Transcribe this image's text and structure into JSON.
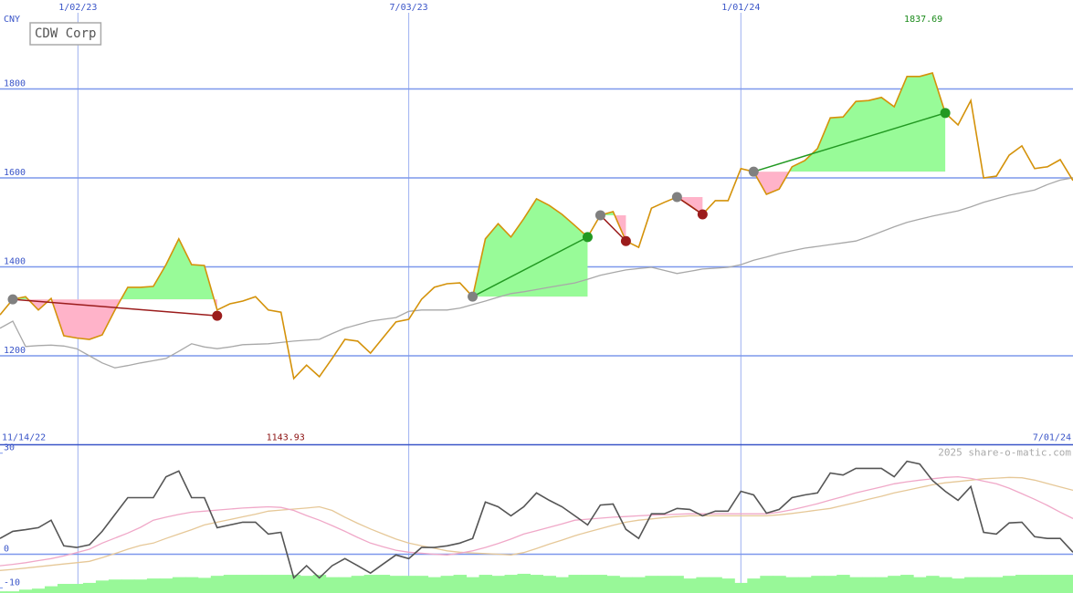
{
  "chart_data": [
    {
      "type": "line",
      "title": "CDW Corp",
      "y_label": "CNY",
      "start_label": "11/14/22",
      "end_label": "7/01/24",
      "max_value": 1837.69,
      "max_color": "#1a8a1a",
      "min_value": 1143.93,
      "min_color": "#8b1010",
      "x": [
        0,
        1,
        2,
        3,
        4,
        5,
        6,
        7,
        8,
        9,
        10,
        11,
        12,
        13,
        14,
        15,
        16,
        17,
        18,
        19,
        20,
        21,
        22,
        23,
        24,
        25,
        26,
        27,
        28,
        29,
        30,
        31,
        32,
        33,
        34,
        35,
        36,
        37,
        38,
        39,
        40,
        41,
        42,
        43,
        44,
        45,
        46,
        47,
        48,
        49,
        50,
        51,
        52,
        53,
        54,
        55,
        56,
        57,
        58,
        59,
        60,
        61,
        62,
        63,
        64,
        65,
        66,
        67,
        68,
        69,
        70,
        71,
        72,
        73,
        74,
        75,
        76,
        77,
        78,
        79,
        80,
        81,
        82,
        83,
        84
      ],
      "xlim": [
        0,
        84
      ],
      "xticks": [
        {
          "value": 6.1,
          "label": "1/02/23"
        },
        {
          "value": 32,
          "label": "7/03/23"
        },
        {
          "value": 58,
          "label": "1/01/24"
        }
      ],
      "ylim": [
        1000,
        2000
      ],
      "yticks": [
        1200,
        1400,
        1600,
        1800
      ],
      "grid": true,
      "series": [
        {
          "color": "#a8a8a8",
          "values": [
            1262,
            1278,
            1221,
            1223,
            1224,
            1222,
            1216,
            1200,
            1184,
            1173,
            1178,
            1184,
            1189,
            1194,
            1210,
            1227,
            1220,
            1216,
            1220,
            1225,
            1226,
            1227,
            1230,
            1233,
            1235,
            1237,
            1250,
            1262,
            1270,
            1278,
            1282,
            1286,
            1300,
            1303,
            1303,
            1303,
            1307,
            1315,
            1323,
            1332,
            1340,
            1344,
            1349,
            1354,
            1359,
            1364,
            1372,
            1381,
            1387,
            1393,
            1396,
            1399,
            1392,
            1385,
            1390,
            1395,
            1397,
            1399,
            1405,
            1415,
            1422,
            1430,
            1436,
            1442,
            1446,
            1450,
            1454,
            1458,
            1468,
            1479,
            1490,
            1500,
            1507,
            1514,
            1520,
            1526,
            1535,
            1545,
            1553,
            1561,
            1567,
            1573,
            1585,
            1595,
            1600
          ]
        },
        {
          "color": "#d4920a",
          "values": [
            1292,
            1327,
            1333,
            1303,
            1329,
            1245,
            1240,
            1237,
            1247,
            1303,
            1354,
            1354,
            1356,
            1405,
            1463,
            1405,
            1403,
            1303,
            1317,
            1323,
            1333,
            1303,
            1298,
            1149,
            1179,
            1153,
            1194,
            1237,
            1233,
            1206,
            1241,
            1276,
            1282,
            1327,
            1354,
            1362,
            1364,
            1333,
            1463,
            1497,
            1467,
            1508,
            1553,
            1538,
            1518,
            1493,
            1467,
            1516,
            1524,
            1458,
            1444,
            1532,
            1545,
            1557,
            1538,
            1518,
            1549,
            1549,
            1621,
            1614,
            1563,
            1575,
            1625,
            1639,
            1666,
            1735,
            1737,
            1772,
            1774,
            1781,
            1760,
            1828,
            1828,
            1836,
            1746,
            1719,
            1774,
            1600,
            1604,
            1651,
            1672,
            1621,
            1625,
            1641,
            1594
          ]
        }
      ],
      "fill_up_color": "#98fb98",
      "fill_down_color": "#ffb3c9",
      "entry_color": "#808080",
      "signals": [
        {
          "x": [
            1,
            17
          ],
          "values": [
            1327,
            1290
          ],
          "color": "#9b1c1c"
        },
        {
          "x": [
            37,
            46
          ],
          "values": [
            1333,
            1467
          ],
          "color": "#229922"
        },
        {
          "x": [
            47,
            49
          ],
          "values": [
            1516,
            1458
          ],
          "color": "#9b1c1c"
        },
        {
          "x": [
            53,
            55
          ],
          "values": [
            1557,
            1518
          ],
          "color": "#9b1c1c"
        },
        {
          "x": [
            59,
            74
          ],
          "values": [
            1614,
            1746
          ],
          "color": "#229922"
        }
      ]
    },
    {
      "type": "line",
      "watermark": "2025 share-o-matic.com",
      "x": [
        0,
        1,
        2,
        3,
        4,
        5,
        6,
        7,
        8,
        9,
        10,
        11,
        12,
        13,
        14,
        15,
        16,
        17,
        18,
        19,
        20,
        21,
        22,
        23,
        24,
        25,
        26,
        27,
        28,
        29,
        30,
        31,
        32,
        33,
        34,
        35,
        36,
        37,
        38,
        39,
        40,
        41,
        42,
        43,
        44,
        45,
        46,
        47,
        48,
        49,
        50,
        51,
        52,
        53,
        54,
        55,
        56,
        57,
        58,
        59,
        60,
        61,
        62,
        63,
        64,
        65,
        66,
        67,
        68,
        69,
        70,
        71,
        72,
        73,
        74,
        75,
        76,
        77,
        78,
        79,
        80,
        81,
        82,
        83,
        84
      ],
      "xlim": [
        0,
        84
      ],
      "xticks": [
        6.1,
        32,
        58
      ],
      "ylim": [
        -11.5,
        32.5
      ],
      "yticks": [
        30,
        0,
        -10
      ],
      "baseline": 0,
      "series": [
        {
          "type": "bar",
          "color": "#98f898",
          "values": [
            -11.0,
            -11.0,
            -10.5,
            -10.2,
            -9.5,
            -8.8,
            -8.8,
            -8.5,
            -7.8,
            -7.5,
            -7.5,
            -7.5,
            -7.2,
            -7.2,
            -6.8,
            -6.8,
            -7.0,
            -6.4,
            -6.1,
            -6.1,
            -6.1,
            -6.1,
            -6.1,
            -6.1,
            -6.4,
            -6.1,
            -6.8,
            -6.8,
            -6.4,
            -6.1,
            -6.1,
            -6.4,
            -6.4,
            -6.4,
            -6.8,
            -6.4,
            -6.1,
            -6.8,
            -6.1,
            -6.4,
            -6.1,
            -5.8,
            -6.1,
            -6.4,
            -6.8,
            -6.1,
            -6.1,
            -6.1,
            -6.4,
            -6.8,
            -6.8,
            -6.4,
            -6.4,
            -6.4,
            -7.2,
            -6.8,
            -6.8,
            -7.2,
            -8.5,
            -7.2,
            -6.4,
            -6.4,
            -6.8,
            -6.8,
            -6.4,
            -6.4,
            -6.1,
            -6.8,
            -6.8,
            -6.8,
            -6.4,
            -6.1,
            -6.8,
            -6.4,
            -6.8,
            -7.2,
            -6.8,
            -6.8,
            -6.8,
            -6.4,
            -6.1,
            -6.1,
            -6.1,
            -6.1,
            -6.1
          ]
        },
        {
          "type": "line",
          "color": "#e6c898",
          "values": [
            -4.8,
            -4.5,
            -4.1,
            -3.7,
            -3.3,
            -2.9,
            -2.5,
            -2.1,
            -1.0,
            0.2,
            1.5,
            2.6,
            3.3,
            4.7,
            6.0,
            7.3,
            8.7,
            9.5,
            10.3,
            11.1,
            11.9,
            12.8,
            13.1,
            13.4,
            13.7,
            14.1,
            13.0,
            11.0,
            9.2,
            7.5,
            6.0,
            4.5,
            3.3,
            2.5,
            1.8,
            1.0,
            0.6,
            0.4,
            0.2,
            0.0,
            -0.2,
            0.5,
            1.7,
            3.0,
            4.2,
            5.5,
            6.6,
            7.6,
            8.6,
            9.5,
            10.1,
            10.5,
            10.9,
            11.2,
            11.4,
            11.4,
            11.4,
            11.4,
            11.4,
            11.4,
            11.4,
            11.7,
            12.1,
            12.6,
            13.1,
            13.6,
            14.5,
            15.4,
            16.3,
            17.2,
            18.2,
            19.0,
            19.8,
            20.6,
            21.2,
            21.6,
            22.0,
            22.4,
            22.6,
            22.8,
            22.7,
            22.0,
            21.0,
            20.0,
            19.0
          ]
        },
        {
          "type": "line",
          "color": "#f0a8c8",
          "values": [
            -3.4,
            -3.0,
            -2.5,
            -1.9,
            -1.3,
            -0.5,
            0.5,
            1.5,
            3.3,
            4.8,
            6.3,
            8.0,
            10.1,
            11.0,
            11.8,
            12.5,
            12.8,
            13.1,
            13.4,
            13.7,
            13.9,
            14.1,
            13.9,
            13.0,
            11.5,
            10.1,
            8.5,
            6.8,
            5.0,
            3.3,
            2.2,
            1.2,
            0.6,
            0.3,
            0.0,
            -0.2,
            0.3,
            1.0,
            2.0,
            3.2,
            4.5,
            6.0,
            7.0,
            8.0,
            9.0,
            10.1,
            10.4,
            10.7,
            11.0,
            11.2,
            11.4,
            11.6,
            11.7,
            11.9,
            12.0,
            12.0,
            12.0,
            12.0,
            12.0,
            12.0,
            12.0,
            12.5,
            13.2,
            14.1,
            15.0,
            16.1,
            17.1,
            18.2,
            19.1,
            20.0,
            20.9,
            21.5,
            22.0,
            22.4,
            22.8,
            23.0,
            22.5,
            21.7,
            20.9,
            19.6,
            18.0,
            16.3,
            14.5,
            12.5,
            10.6
          ]
        },
        {
          "type": "line",
          "color": "#555555",
          "values": [
            4.7,
            6.8,
            7.3,
            7.9,
            10.1,
            2.5,
            2.0,
            2.8,
            6.8,
            11.8,
            16.8,
            16.8,
            16.8,
            23.0,
            24.7,
            16.8,
            16.8,
            7.9,
            8.7,
            9.5,
            9.5,
            6.0,
            6.5,
            -7.0,
            -3.4,
            -7.0,
            -3.4,
            -1.3,
            -3.4,
            -5.6,
            -2.9,
            -0.2,
            -1.3,
            2.0,
            2.0,
            2.5,
            3.3,
            4.7,
            15.5,
            14.1,
            11.4,
            14.1,
            18.2,
            16.0,
            14.1,
            11.4,
            8.7,
            14.6,
            14.9,
            7.4,
            4.7,
            12.0,
            12.0,
            13.6,
            13.3,
            11.4,
            12.8,
            12.8,
            18.7,
            17.6,
            12.2,
            13.3,
            16.8,
            17.6,
            18.2,
            24.1,
            23.5,
            25.5,
            25.5,
            25.5,
            23.0,
            27.6,
            26.8,
            21.9,
            18.7,
            16.0,
            20.1,
            6.5,
            6.0,
            9.3,
            9.5,
            5.2,
            4.7,
            4.7,
            0.6
          ]
        }
      ]
    }
  ]
}
